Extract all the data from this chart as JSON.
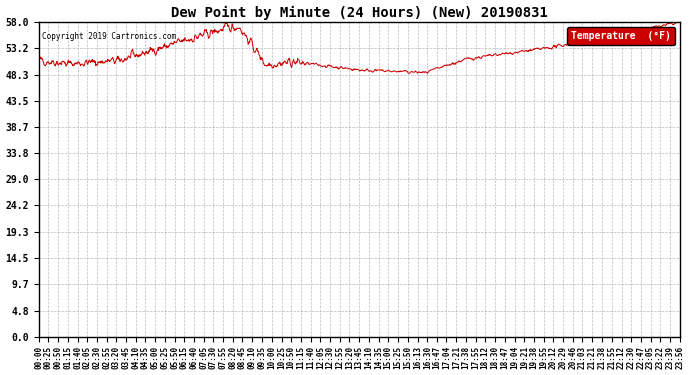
{
  "title": "Dew Point by Minute (24 Hours) (New) 20190831",
  "copyright": "Copyright 2019 Cartronics.com",
  "legend_label": "Temperature  (°F)",
  "line_color": "#cc0000",
  "legend_bg": "#cc0000",
  "legend_text_color": "#ffffff",
  "yticks": [
    0.0,
    4.8,
    9.7,
    14.5,
    19.3,
    24.2,
    29.0,
    33.8,
    38.7,
    43.5,
    48.3,
    53.2,
    58.0
  ],
  "ylim": [
    0.0,
    58.0
  ],
  "bg_color": "#ffffff",
  "plot_bg": "#ffffff",
  "grid_color": "#aaaaaa",
  "xtick_labels": [
    "00:00",
    "00:25",
    "00:50",
    "01:15",
    "01:40",
    "02:05",
    "02:30",
    "02:55",
    "03:20",
    "03:45",
    "04:10",
    "04:35",
    "05:00",
    "05:25",
    "05:50",
    "06:15",
    "06:40",
    "07:05",
    "07:30",
    "07:55",
    "08:20",
    "08:45",
    "09:10",
    "09:35",
    "10:00",
    "10:25",
    "10:50",
    "11:15",
    "11:40",
    "12:05",
    "12:30",
    "12:55",
    "13:20",
    "13:45",
    "14:10",
    "14:35",
    "15:00",
    "15:25",
    "15:50",
    "16:13",
    "16:30",
    "16:47",
    "17:04",
    "17:21",
    "17:38",
    "17:55",
    "18:12",
    "18:30",
    "18:47",
    "19:04",
    "19:21",
    "19:38",
    "19:55",
    "20:12",
    "20:29",
    "20:46",
    "21:03",
    "21:21",
    "21:38",
    "21:55",
    "22:12",
    "22:30",
    "22:47",
    "23:05",
    "23:22",
    "23:39",
    "23:56"
  ]
}
